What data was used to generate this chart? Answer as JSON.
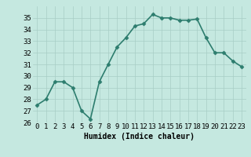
{
  "x": [
    0,
    1,
    2,
    3,
    4,
    5,
    6,
    7,
    8,
    9,
    10,
    11,
    12,
    13,
    14,
    15,
    16,
    17,
    18,
    19,
    20,
    21,
    22,
    23
  ],
  "y": [
    27.5,
    28.0,
    29.5,
    29.5,
    29.0,
    27.0,
    26.3,
    29.5,
    31.0,
    32.5,
    33.3,
    34.3,
    34.5,
    35.3,
    35.0,
    35.0,
    34.8,
    34.8,
    34.9,
    33.3,
    32.0,
    32.0,
    31.3,
    30.8
  ],
  "line_color": "#2d7d6e",
  "marker": "D",
  "marker_size": 2.5,
  "background_color": "#c5e8e0",
  "grid_color": "#a8cdc5",
  "xlabel": "Humidex (Indice chaleur)",
  "ylim": [
    26,
    36
  ],
  "xlim": [
    -0.5,
    23.5
  ],
  "yticks": [
    26,
    27,
    28,
    29,
    30,
    31,
    32,
    33,
    34,
    35
  ],
  "xticks": [
    0,
    1,
    2,
    3,
    4,
    5,
    6,
    7,
    8,
    9,
    10,
    11,
    12,
    13,
    14,
    15,
    16,
    17,
    18,
    19,
    20,
    21,
    22,
    23
  ],
  "xlabel_fontsize": 7,
  "tick_fontsize": 6.5,
  "linewidth": 1.2
}
